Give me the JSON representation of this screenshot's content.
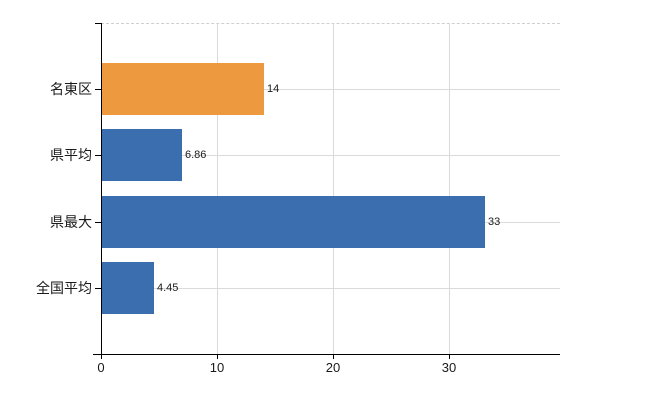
{
  "chart_data": {
    "type": "bar",
    "orientation": "horizontal",
    "title": "",
    "xlabel": "",
    "ylabel": "",
    "categories": [
      "名東区",
      "県平均",
      "県最大",
      "全国平均"
    ],
    "values": [
      14,
      6.86,
      33,
      4.45
    ],
    "data_labels": [
      "14",
      "6.86",
      "33",
      "4.45"
    ],
    "bar_colors": [
      "#EC9940",
      "#3B6EAE",
      "#3B6EAE",
      "#3B6EAE"
    ],
    "x_tick_values": [
      0,
      10,
      20,
      30
    ],
    "x_tick_labels": [
      "0",
      "10",
      "20",
      "30"
    ],
    "xlim": [
      0,
      39.6
    ],
    "grid": "on",
    "legend": "none"
  },
  "colors": {
    "bar_orange": "#EC9940",
    "bar_blue": "#3B6EAE",
    "gridline": "#DADADA",
    "plot_top_border": "#CFCFCF",
    "axis": "#000000",
    "text": "#1A1A1A",
    "background": "#FFFFFF"
  }
}
